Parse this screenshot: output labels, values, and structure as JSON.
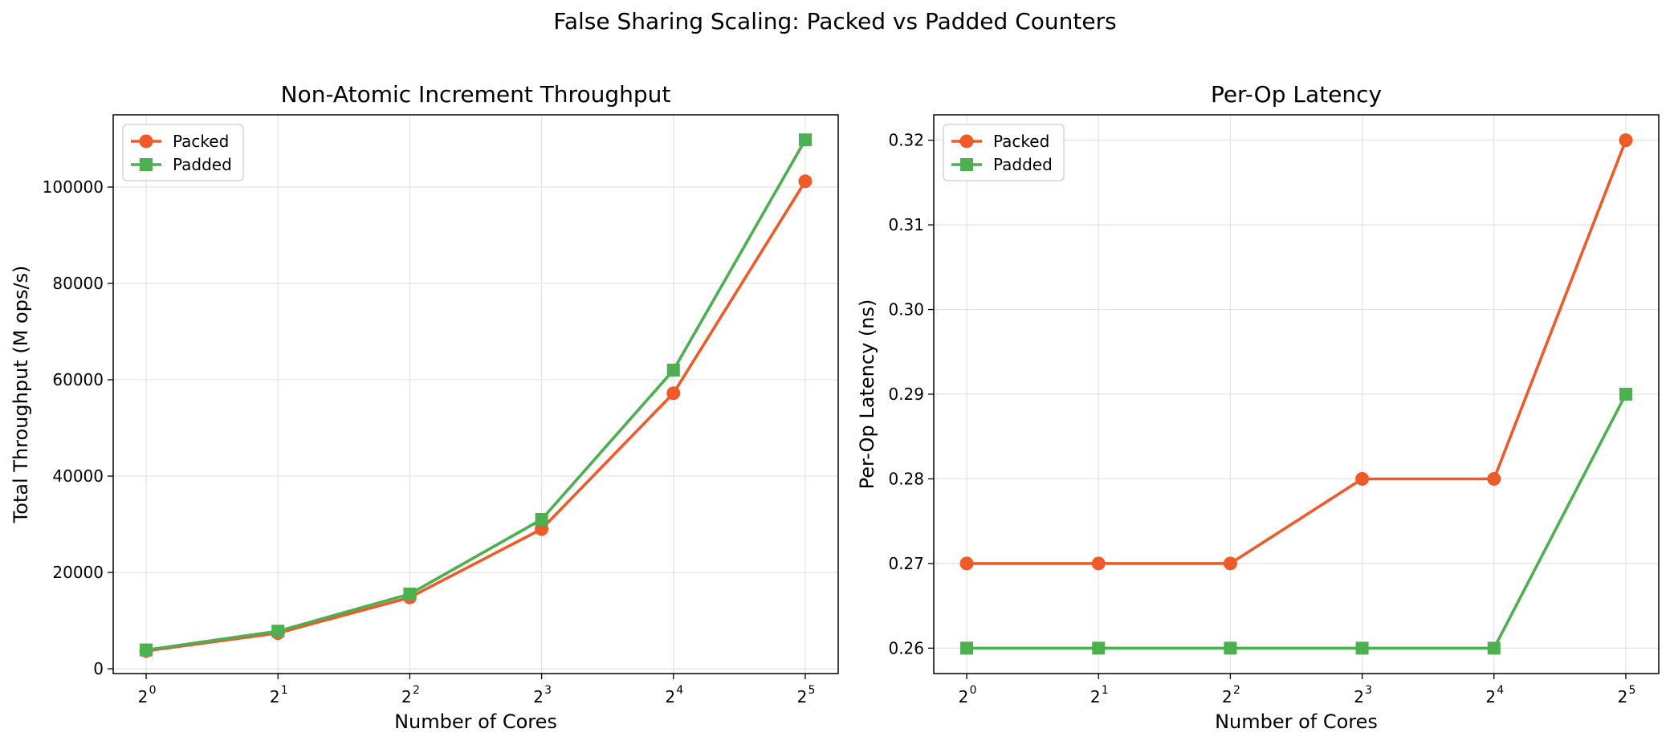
{
  "figure": {
    "suptitle": "False Sharing Scaling: Packed vs Padded Counters"
  },
  "colors": {
    "packed": "#f05a28",
    "padded": "#4caf50",
    "grid": "#e3e3e3",
    "axis": "#000000"
  },
  "chart_data": [
    {
      "type": "line",
      "title": "Non-Atomic Increment Throughput",
      "xlabel": "Number of Cores",
      "ylabel": "Total Throughput (M ops/s)",
      "x_scale": "log2",
      "x": [
        1,
        2,
        4,
        8,
        16,
        32
      ],
      "x_tick_labels": [
        {
          "base": "2",
          "exp": "0"
        },
        {
          "base": "2",
          "exp": "1"
        },
        {
          "base": "2",
          "exp": "2"
        },
        {
          "base": "2",
          "exp": "3"
        },
        {
          "base": "2",
          "exp": "4"
        },
        {
          "base": "2",
          "exp": "5"
        }
      ],
      "ylim": [
        -1000,
        115000
      ],
      "y_ticks": [
        0,
        20000,
        40000,
        60000,
        80000,
        100000
      ],
      "y_tick_labels": [
        "0",
        "20000",
        "40000",
        "60000",
        "80000",
        "100000"
      ],
      "grid": true,
      "legend_position": "top-left",
      "series": [
        {
          "name": "Packed",
          "marker": "circle",
          "values": [
            3700,
            7400,
            14800,
            29000,
            57200,
            101200
          ]
        },
        {
          "name": "Padded",
          "marker": "square",
          "values": [
            3900,
            7800,
            15500,
            31000,
            62000,
            109800
          ]
        }
      ]
    },
    {
      "type": "line",
      "title": "Per-Op Latency",
      "xlabel": "Number of Cores",
      "ylabel": "Per-Op Latency (ns)",
      "x_scale": "log2",
      "x": [
        1,
        2,
        4,
        8,
        16,
        32
      ],
      "x_tick_labels": [
        {
          "base": "2",
          "exp": "0"
        },
        {
          "base": "2",
          "exp": "1"
        },
        {
          "base": "2",
          "exp": "2"
        },
        {
          "base": "2",
          "exp": "3"
        },
        {
          "base": "2",
          "exp": "4"
        },
        {
          "base": "2",
          "exp": "5"
        }
      ],
      "ylim": [
        0.257,
        0.323
      ],
      "y_ticks": [
        0.26,
        0.27,
        0.28,
        0.29,
        0.3,
        0.31,
        0.32
      ],
      "y_tick_labels": [
        "0.26",
        "0.27",
        "0.28",
        "0.29",
        "0.30",
        "0.31",
        "0.32"
      ],
      "grid": true,
      "legend_position": "top-left",
      "series": [
        {
          "name": "Packed",
          "marker": "circle",
          "values": [
            0.27,
            0.27,
            0.27,
            0.28,
            0.28,
            0.32
          ]
        },
        {
          "name": "Padded",
          "marker": "square",
          "values": [
            0.26,
            0.26,
            0.26,
            0.26,
            0.26,
            0.29
          ]
        }
      ]
    }
  ]
}
